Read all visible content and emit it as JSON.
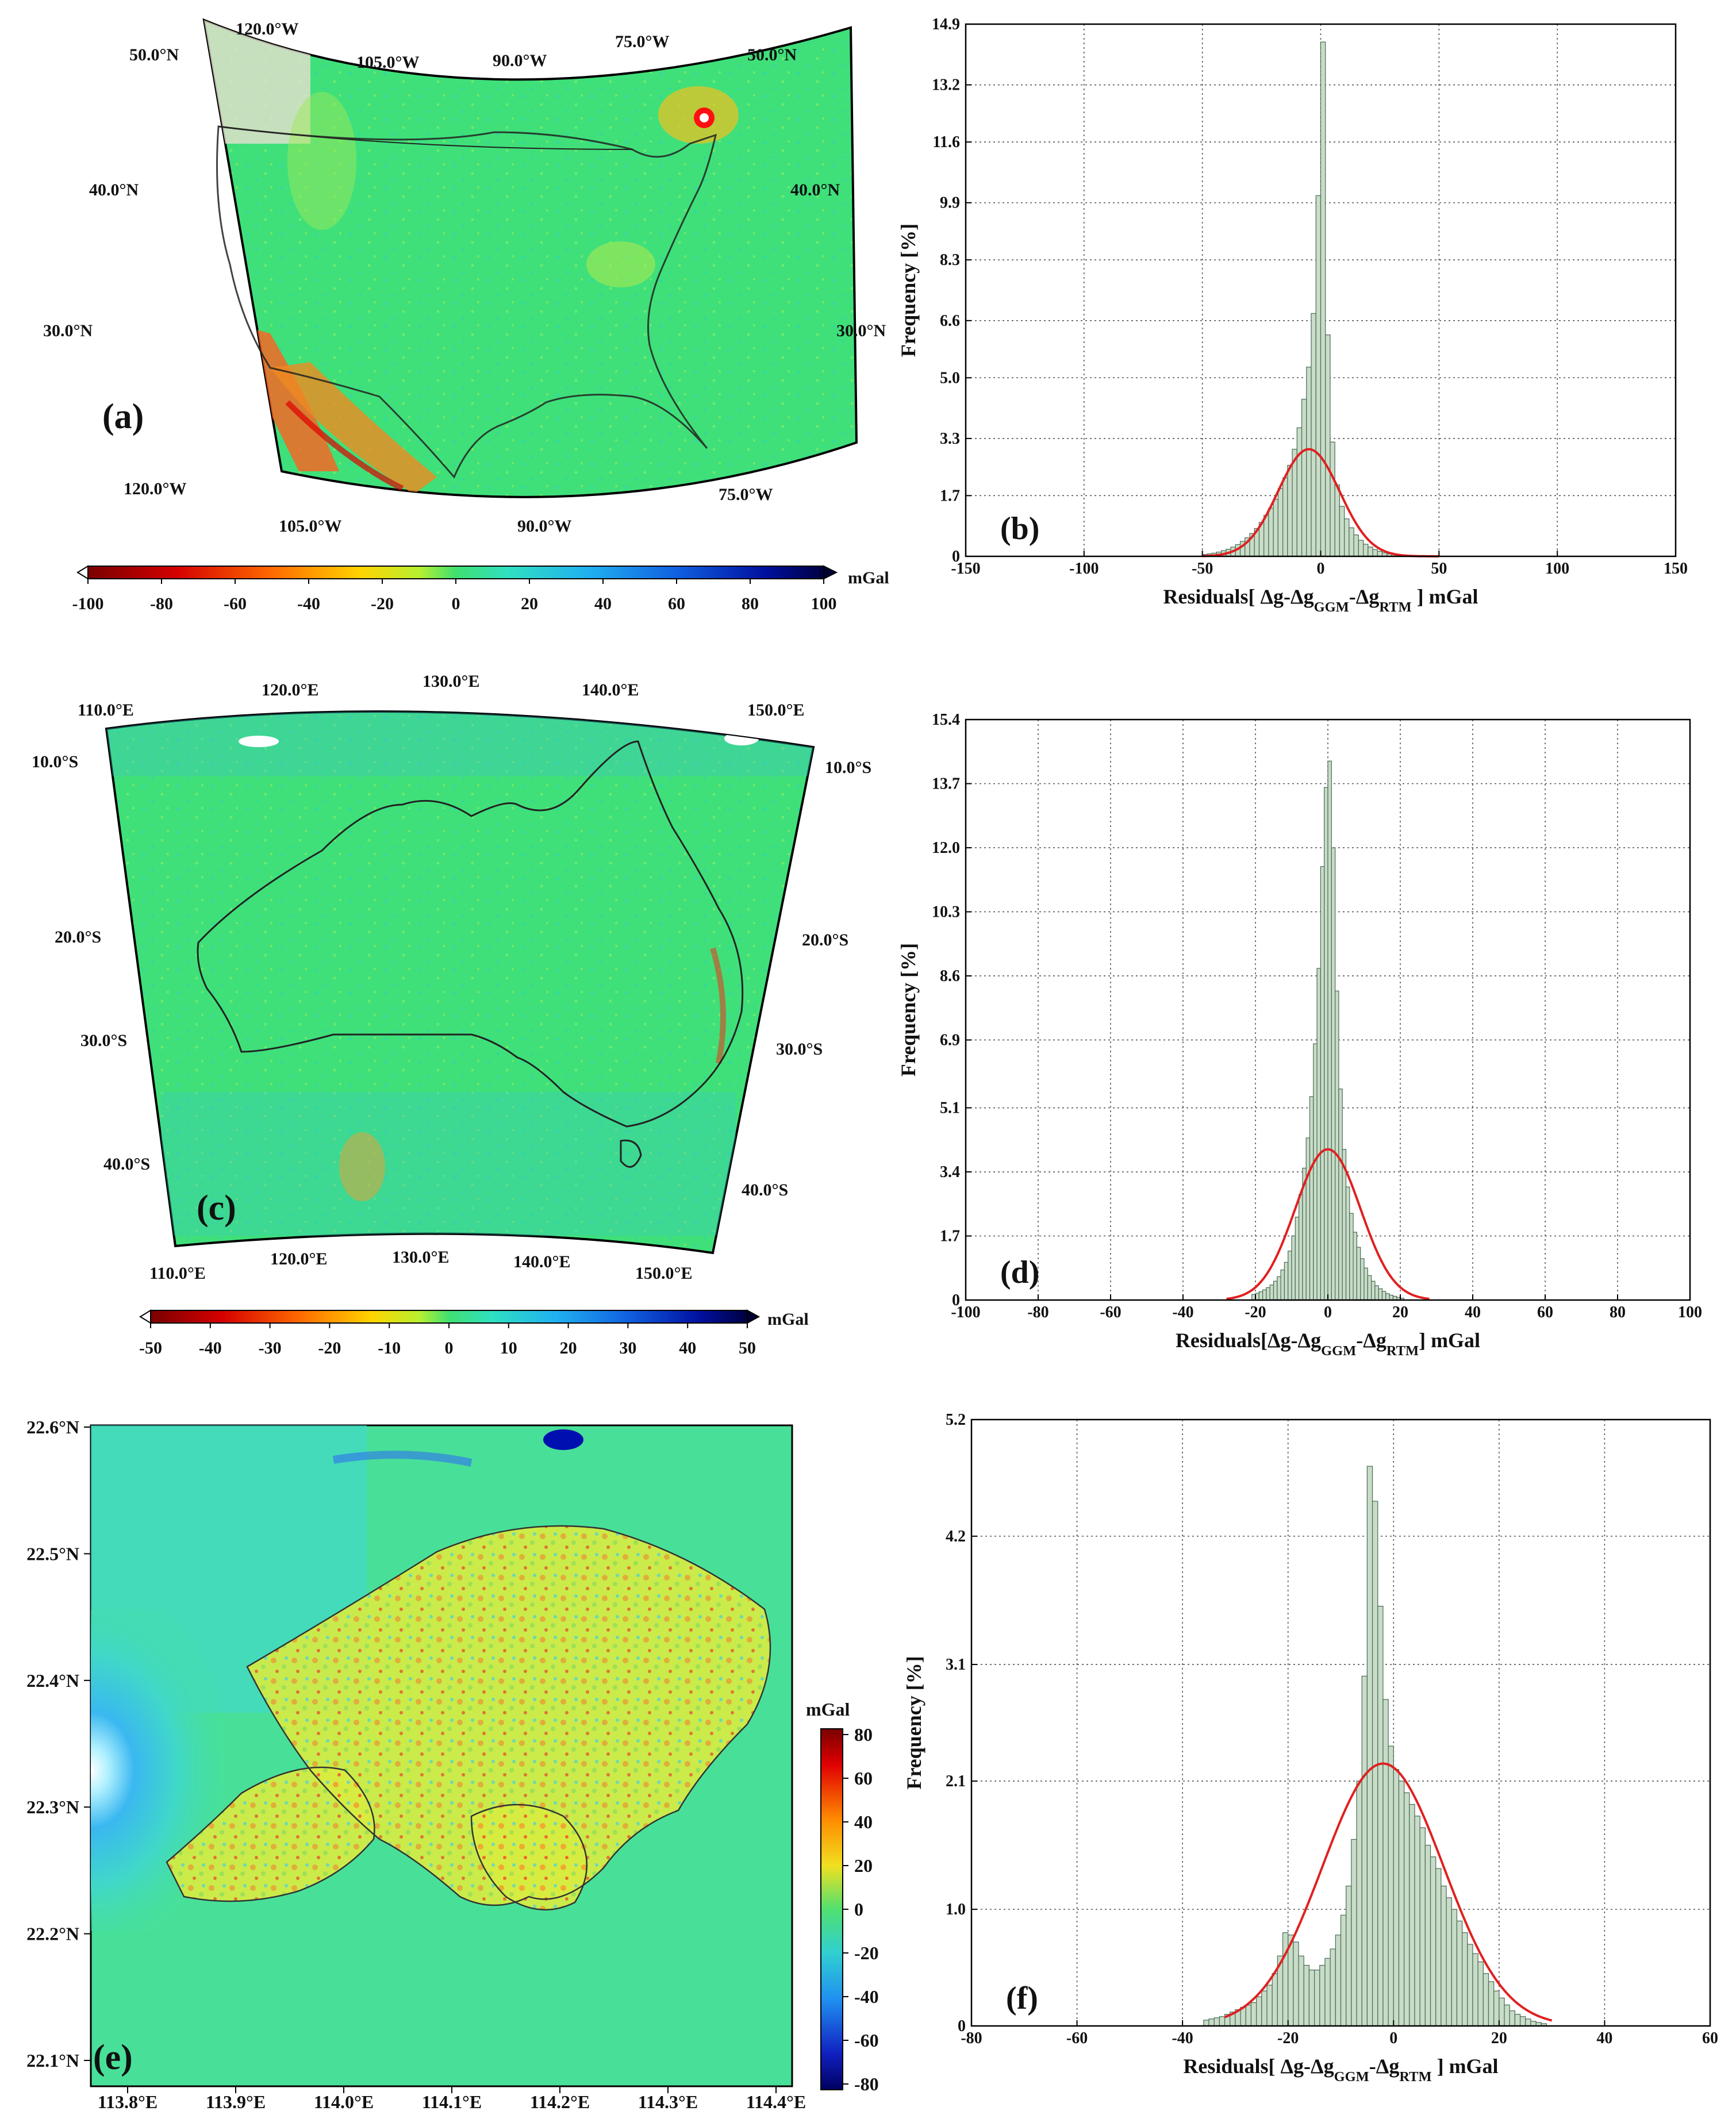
{
  "maps": [
    {
      "label": "(a)",
      "top_lon_labels": [
        "120.0°W",
        "105.0°W",
        "90.0°W",
        "75.0°W"
      ],
      "bottom_lon_labels": [
        "120.0°W",
        "105.0°W",
        "90.0°W",
        "75.0°W"
      ],
      "left_lat_labels": [
        "50.0°N",
        "40.0°N",
        "30.0°N"
      ],
      "right_lat_labels": [
        "50.0°N",
        "40.0°N",
        "30.0°N"
      ],
      "colorbar": {
        "unit": "mGal",
        "ticks": [
          "-100",
          "-80",
          "-60",
          "-40",
          "-20",
          "0",
          "20",
          "40",
          "60",
          "80",
          "100"
        ]
      }
    },
    {
      "label": "(c)",
      "top_lon_labels": [
        "110.0°E",
        "120.0°E",
        "130.0°E",
        "140.0°E",
        "150.0°E"
      ],
      "bottom_lon_labels": [
        "110.0°E",
        "120.0°E",
        "130.0°E",
        "140.0°E",
        "150.0°E"
      ],
      "left_lat_labels": [
        "10.0°S",
        "20.0°S",
        "30.0°S",
        "40.0°S"
      ],
      "right_lat_labels": [
        "10.0°S",
        "20.0°S",
        "30.0°S",
        "40.0°S"
      ],
      "colorbar": {
        "unit": "mGal",
        "ticks": [
          "-50",
          "-40",
          "-30",
          "-20",
          "-10",
          "0",
          "10",
          "20",
          "30",
          "40",
          "50"
        ]
      }
    },
    {
      "label": "(e)",
      "lon_labels": [
        "113.8°E",
        "113.9°E",
        "114.0°E",
        "114.1°E",
        "114.2°E",
        "114.3°E",
        "114.4°E"
      ],
      "lat_labels": [
        "22.6°N",
        "22.5°N",
        "22.4°N",
        "22.3°N",
        "22.2°N",
        "22.1°N"
      ],
      "colorbar": {
        "unit": "mGal",
        "ticks": [
          "80",
          "60",
          "40",
          "20",
          "0",
          "-20",
          "-40",
          "-60",
          "-80"
        ]
      }
    }
  ],
  "chart_data": [
    {
      "type": "bar",
      "label": "(b)",
      "xlabel": "Residuals[ Δg-Δg_GGM-Δg_RTM ] mGal",
      "ylabel": "Frequency [%]",
      "xlim": [
        -150,
        150
      ],
      "ylim": [
        0,
        14.9
      ],
      "xticks": [
        "-150",
        "-100",
        "-50",
        "0",
        "50",
        "100",
        "150"
      ],
      "yticks": [
        "0",
        "1.7",
        "3.3",
        "5.0",
        "6.6",
        "8.3",
        "9.9",
        "11.6",
        "13.2",
        "14.9"
      ],
      "grid": true,
      "bin_width": 2,
      "histogram_centers": [
        -49,
        -47,
        -45,
        -43,
        -41,
        -39,
        -37,
        -35,
        -33,
        -31,
        -29,
        -27,
        -25,
        -23,
        -21,
        -19,
        -17,
        -15,
        -13,
        -11,
        -9,
        -7,
        -5,
        -3,
        -1,
        1,
        3,
        5,
        7,
        9,
        11,
        13,
        15,
        17,
        19,
        21,
        23,
        25,
        27,
        29,
        31,
        33,
        35
      ],
      "histogram_values": [
        0.05,
        0.07,
        0.09,
        0.12,
        0.16,
        0.2,
        0.26,
        0.33,
        0.42,
        0.52,
        0.64,
        0.78,
        0.95,
        1.15,
        1.35,
        1.6,
        1.9,
        2.2,
        2.55,
        3.0,
        3.6,
        4.4,
        5.3,
        6.8,
        10.1,
        14.4,
        6.2,
        3.2,
        2.0,
        1.4,
        1.05,
        0.8,
        0.6,
        0.45,
        0.34,
        0.26,
        0.19,
        0.14,
        0.1,
        0.07,
        0.05,
        0.03,
        0.02
      ],
      "normal_fit": {
        "mean": -5,
        "std": 13,
        "peak": 3.0,
        "x_range": [
          -50,
          50
        ],
        "color": "#e02020"
      }
    },
    {
      "type": "bar",
      "label": "(d)",
      "xlabel": "Residuals[Δg-Δg_GGM-Δg_RTM] mGal",
      "ylabel": "Frequency [%]",
      "xlim": [
        -100,
        100
      ],
      "ylim": [
        0,
        15.4
      ],
      "xticks": [
        "-100",
        "-80",
        "-60",
        "-40",
        "-20",
        "0",
        "20",
        "40",
        "60",
        "80",
        "100"
      ],
      "yticks": [
        "0",
        "1.7",
        "3.4",
        "5.1",
        "6.9",
        "8.6",
        "10.3",
        "12.0",
        "13.7",
        "15.4"
      ],
      "grid": true,
      "bin_width": 1,
      "histogram_centers": [
        -20.5,
        -19.5,
        -18.5,
        -17.5,
        -16.5,
        -15.5,
        -14.5,
        -13.5,
        -12.5,
        -11.5,
        -10.5,
        -9.5,
        -8.5,
        -7.5,
        -6.5,
        -5.5,
        -4.5,
        -3.5,
        -2.5,
        -1.5,
        -0.5,
        0.5,
        1.5,
        2.5,
        3.5,
        4.5,
        5.5,
        6.5,
        7.5,
        8.5,
        9.5,
        10.5,
        11.5,
        12.5,
        13.5,
        14.5,
        15.5,
        16.5,
        17.5,
        18.5,
        19.5,
        20.5
      ],
      "histogram_values": [
        0.15,
        0.18,
        0.22,
        0.27,
        0.33,
        0.4,
        0.5,
        0.62,
        0.8,
        1.0,
        1.3,
        1.7,
        2.2,
        2.8,
        3.5,
        4.3,
        5.4,
        6.8,
        8.8,
        11.5,
        13.6,
        14.3,
        12.0,
        8.2,
        5.6,
        4.0,
        3.0,
        2.3,
        1.8,
        1.4,
        1.1,
        0.85,
        0.65,
        0.5,
        0.38,
        0.3,
        0.23,
        0.17,
        0.13,
        0.1,
        0.07,
        0.05
      ],
      "normal_fit": {
        "mean": 0,
        "std": 9,
        "peak": 4.0,
        "x_range": [
          -28,
          28
        ],
        "color": "#e02020"
      }
    },
    {
      "type": "bar",
      "label": "(f)",
      "xlabel": "Residuals[ Δg-Δg_GGM-Δg_RTM ] mGal",
      "ylabel": "Frequency [%]",
      "xlim": [
        -80,
        60
      ],
      "ylim": [
        0,
        5.2
      ],
      "xticks": [
        "-80",
        "-60",
        "-40",
        "-20",
        "0",
        "20",
        "40",
        "60"
      ],
      "yticks": [
        "0",
        "1.0",
        "2.1",
        "3.1",
        "4.2",
        "5.2"
      ],
      "grid": true,
      "bin_width": 1,
      "histogram_centers": [
        -35.5,
        -34.5,
        -33.5,
        -32.5,
        -31.5,
        -30.5,
        -29.5,
        -28.5,
        -27.5,
        -26.5,
        -25.5,
        -24.5,
        -23.5,
        -22.5,
        -21.5,
        -20.5,
        -19.5,
        -18.5,
        -17.5,
        -16.5,
        -15.5,
        -14.5,
        -13.5,
        -12.5,
        -11.5,
        -10.5,
        -9.5,
        -8.5,
        -7.5,
        -6.5,
        -5.5,
        -4.5,
        -3.5,
        -2.5,
        -1.5,
        -0.5,
        0.5,
        1.5,
        2.5,
        3.5,
        4.5,
        5.5,
        6.5,
        7.5,
        8.5,
        9.5,
        10.5,
        11.5,
        12.5,
        13.5,
        14.5,
        15.5,
        16.5,
        17.5,
        18.5,
        19.5,
        20.5,
        21.5,
        22.5,
        23.5,
        24.5,
        25.5,
        26.5,
        27.5,
        28.5
      ],
      "histogram_values": [
        0.05,
        0.06,
        0.07,
        0.08,
        0.1,
        0.12,
        0.14,
        0.16,
        0.18,
        0.2,
        0.25,
        0.3,
        0.35,
        0.45,
        0.6,
        0.8,
        0.78,
        0.72,
        0.6,
        0.52,
        0.48,
        0.48,
        0.52,
        0.58,
        0.66,
        0.78,
        0.95,
        1.2,
        1.6,
        2.1,
        3.0,
        4.8,
        4.5,
        3.6,
        2.8,
        2.4,
        2.2,
        2.1,
        2.0,
        1.9,
        1.8,
        1.7,
        1.55,
        1.45,
        1.35,
        1.2,
        1.1,
        1.0,
        0.9,
        0.8,
        0.7,
        0.62,
        0.55,
        0.45,
        0.38,
        0.3,
        0.24,
        0.18,
        0.13,
        0.1,
        0.08,
        0.06,
        0.04,
        0.03,
        0.02
      ],
      "normal_fit": {
        "mean": -2,
        "std": 11.5,
        "peak": 2.25,
        "x_range": [
          -32,
          30
        ],
        "color": "#e02020"
      }
    }
  ]
}
